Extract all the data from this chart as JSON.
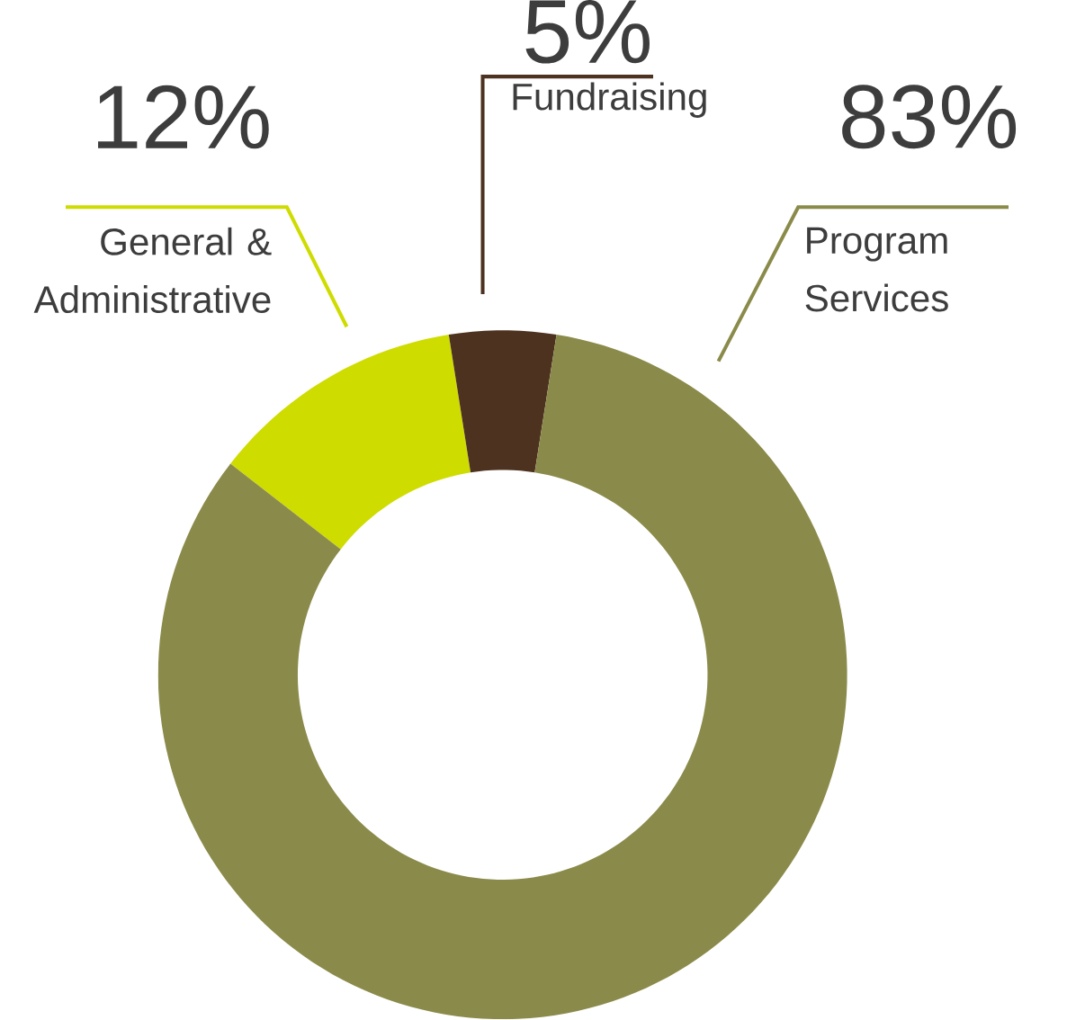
{
  "chart_data": {
    "type": "donut",
    "categories": [
      "General & Administrative",
      "Fundraising",
      "Program Services"
    ],
    "values": [
      12,
      5,
      83
    ],
    "value_labels": [
      "12%",
      "5%",
      "83%"
    ],
    "colors": [
      "#cfdc00",
      "#4e3220",
      "#8a8b4a"
    ]
  }
}
